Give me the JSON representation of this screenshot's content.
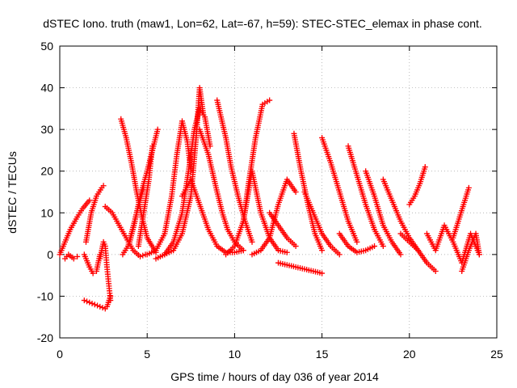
{
  "chart_data": {
    "type": "scatter",
    "title": "dSTEC Iono. truth (maw1, Lon=62, Lat=-67, h=59): STEC-STEC_elemax in phase cont.",
    "xlabel": "GPS time / hours of day 036 of year 2014",
    "ylabel": "dSTEC  / TECUs",
    "xlim": [
      0,
      25
    ],
    "ylim": [
      -20,
      50
    ],
    "xticks": [
      0,
      5,
      10,
      15,
      20,
      25
    ],
    "yticks": [
      -20,
      -10,
      0,
      10,
      20,
      30,
      40,
      50
    ],
    "grid": true,
    "marker": "+",
    "color": "#ff0000",
    "series": [
      {
        "x": [
          0.0,
          0.3,
          0.6,
          1.0,
          1.3,
          1.7
        ],
        "y": [
          0,
          3,
          6,
          9,
          11,
          13
        ]
      },
      {
        "x": [
          0.3,
          0.5,
          0.8,
          1.0
        ],
        "y": [
          -1,
          0,
          -1,
          -0.5
        ]
      },
      {
        "x": [
          1.5,
          1.8,
          2.1,
          2.4,
          2.5
        ],
        "y": [
          3,
          10,
          14,
          16,
          16.5
        ]
      },
      {
        "x": [
          1.4,
          1.7,
          2.0,
          2.3,
          2.6,
          2.7,
          2.9
        ],
        "y": [
          -11,
          -11.5,
          -12,
          -12.5,
          -13,
          -12.5,
          -10
        ]
      },
      {
        "x": [
          1.4,
          1.7,
          1.9,
          2.1,
          2.3
        ],
        "y": [
          0,
          -3,
          -4.5,
          -4,
          0
        ]
      },
      {
        "x": [
          2.3,
          2.5,
          2.6,
          2.7,
          2.8,
          2.9
        ],
        "y": [
          -1,
          3,
          2,
          -3,
          -7,
          -11
        ]
      },
      {
        "x": [
          2.6,
          3.0,
          3.4,
          3.8,
          4.2,
          4.6,
          4.9
        ],
        "y": [
          11.5,
          10,
          7,
          4,
          1,
          -0.5,
          0
        ]
      },
      {
        "x": [
          3.6,
          3.9,
          4.1,
          4.4,
          4.8
        ],
        "y": [
          0,
          2,
          5,
          10,
          16
        ]
      },
      {
        "x": [
          3.5,
          3.8,
          4.1,
          4.4,
          4.7,
          5.0,
          5.5
        ],
        "y": [
          32.5,
          28,
          22,
          15,
          9,
          4,
          0.5
        ]
      },
      {
        "x": [
          4.0,
          4.3,
          4.6,
          5.0,
          5.3,
          5.6
        ],
        "y": [
          3,
          8,
          14,
          20,
          25,
          30
        ]
      },
      {
        "x": [
          4.5,
          4.8,
          5.1,
          5.3
        ],
        "y": [
          2,
          10,
          18,
          26
        ]
      },
      {
        "x": [
          5.0,
          5.5,
          6.0,
          6.4,
          6.7,
          7.0,
          7.3,
          7.5
        ],
        "y": [
          0,
          1,
          5,
          14,
          24,
          32,
          27,
          20
        ]
      },
      {
        "x": [
          5.5,
          6.0,
          6.5,
          7.0,
          7.4,
          7.7,
          8.0,
          8.3,
          8.6
        ],
        "y": [
          -1,
          0,
          3,
          10,
          21,
          30,
          35,
          33,
          26
        ]
      },
      {
        "x": [
          6.0,
          6.5,
          7.0,
          7.5,
          7.8,
          8.0,
          8.2
        ],
        "y": [
          0,
          1,
          5,
          14,
          28,
          40,
          34
        ]
      },
      {
        "x": [
          7.0,
          7.5,
          8.0,
          8.5,
          9.0,
          9.5,
          10.0,
          10.5
        ],
        "y": [
          14,
          18,
          12,
          6,
          2,
          0.5,
          0.5,
          1
        ]
      },
      {
        "x": [
          8.0,
          8.5,
          9.0,
          9.3,
          9.6,
          10.0,
          10.5
        ],
        "y": [
          30,
          24,
          15,
          10,
          6,
          3,
          1
        ]
      },
      {
        "x": [
          9.0,
          9.5,
          9.8,
          10.2,
          10.6,
          11.0
        ],
        "y": [
          37,
          28,
          21,
          14,
          8,
          3
        ]
      },
      {
        "x": [
          9.5,
          10.0,
          10.5,
          10.8,
          11.2,
          11.6,
          12.0
        ],
        "y": [
          0,
          2,
          8,
          17,
          28,
          36,
          37
        ]
      },
      {
        "x": [
          10.5,
          11.0,
          11.5,
          12.0,
          12.5,
          13.0
        ],
        "y": [
          8,
          20,
          10,
          4,
          1,
          0.5
        ]
      },
      {
        "x": [
          11.0,
          11.5,
          12.0,
          12.5,
          13.0,
          13.5
        ],
        "y": [
          0,
          1,
          4,
          12,
          18,
          15
        ]
      },
      {
        "x": [
          12.5,
          13.0,
          13.5,
          14.0,
          14.5,
          15.0
        ],
        "y": [
          -2,
          -2.5,
          -3,
          -3.5,
          -4,
          -4.5
        ]
      },
      {
        "x": [
          12.0,
          12.5,
          13.0,
          13.5
        ],
        "y": [
          10,
          7,
          4,
          2
        ]
      },
      {
        "x": [
          13.4,
          13.8,
          14.2,
          14.6,
          15.0
        ],
        "y": [
          29,
          20,
          12,
          5,
          1
        ]
      },
      {
        "x": [
          14.0,
          14.5,
          15.0,
          15.5,
          16.0
        ],
        "y": [
          15,
          10,
          5,
          2,
          0
        ]
      },
      {
        "x": [
          15.0,
          15.5,
          16.0,
          16.5,
          17.0
        ],
        "y": [
          28,
          22,
          15,
          8,
          3
        ]
      },
      {
        "x": [
          16.0,
          16.5,
          17.0,
          17.5,
          18.0
        ],
        "y": [
          5,
          2,
          0.5,
          1,
          2
        ]
      },
      {
        "x": [
          16.5,
          17.0,
          17.5,
          18.0,
          18.5
        ],
        "y": [
          26,
          19,
          12,
          6,
          2
        ]
      },
      {
        "x": [
          17.5,
          18.0,
          18.5,
          19.0,
          19.5
        ],
        "y": [
          20,
          14,
          7,
          3,
          0
        ]
      },
      {
        "x": [
          18.5,
          19.0,
          19.5,
          20.0,
          20.5
        ],
        "y": [
          18,
          13,
          8,
          4,
          1
        ]
      },
      {
        "x": [
          19.5,
          20.0,
          20.5,
          21.0,
          21.5
        ],
        "y": [
          5,
          3,
          1,
          -2,
          -4
        ]
      },
      {
        "x": [
          20.0,
          20.3,
          20.6,
          20.9
        ],
        "y": [
          12,
          14,
          17,
          21
        ]
      },
      {
        "x": [
          21.0,
          21.5,
          22.0,
          22.5,
          23.0,
          23.5,
          24.0
        ],
        "y": [
          5,
          1,
          7,
          3,
          -2,
          5,
          0
        ]
      },
      {
        "x": [
          22.5,
          22.8,
          23.1,
          23.4
        ],
        "y": [
          4,
          8,
          12,
          16
        ]
      },
      {
        "x": [
          23.0,
          23.4,
          23.8,
          24.0
        ],
        "y": [
          -4,
          1,
          5,
          0
        ]
      }
    ]
  }
}
